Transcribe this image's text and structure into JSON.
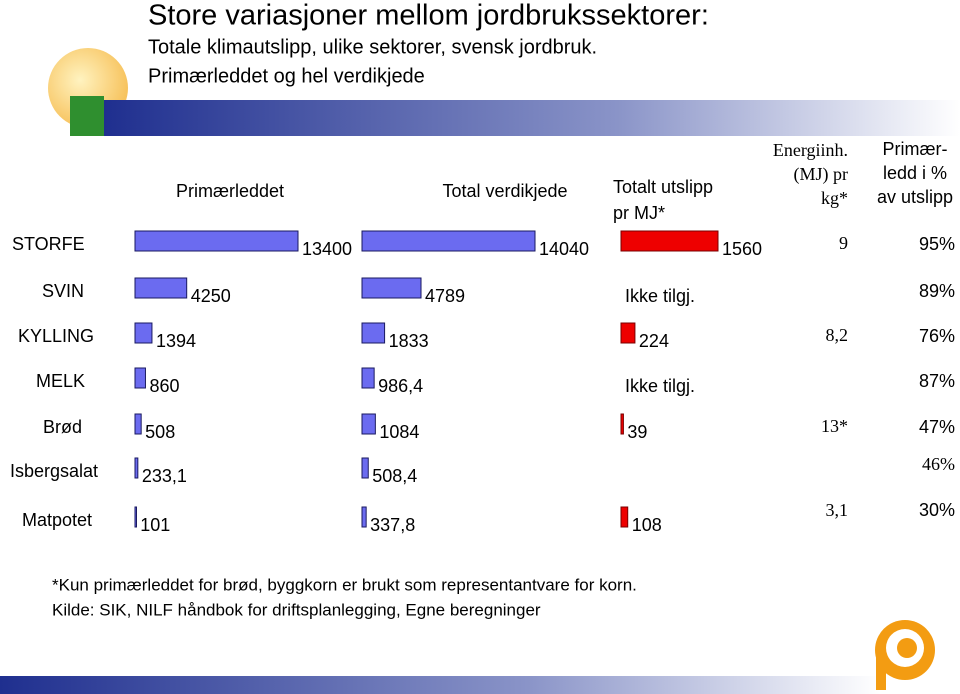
{
  "title": "Store variasjoner mellom jordbrukssektorer:",
  "subtitle": [
    "Totale klimautslipp, ulike sektorer, svensk jordbruk.",
    "Primærleddet og hel verdikjede"
  ],
  "categories": [
    "STORFE",
    "SVIN",
    "KYLLING",
    "MELK",
    "Brød",
    "Isbergsalat",
    "Matpotet"
  ],
  "chart_data": [
    {
      "type": "bar",
      "orientation": "horizontal",
      "title": [
        "Primærleddet"
      ],
      "color": "#6b6bf0",
      "values": [
        13400,
        4250,
        1394,
        860,
        508,
        233.1,
        101
      ],
      "value_labels": [
        "13400",
        "4250",
        "1394",
        "860",
        "508",
        "233,1",
        "101"
      ]
    },
    {
      "type": "bar",
      "orientation": "horizontal",
      "title": [
        "Total verdikjede"
      ],
      "color": "#6b6bf0",
      "values": [
        14040,
        4789,
        1833,
        986.4,
        1084,
        508.4,
        337.8
      ],
      "value_labels": [
        "14040",
        "4789",
        "1833",
        "986,4",
        "1084",
        "508,4",
        "337,8"
      ]
    },
    {
      "type": "bar",
      "orientation": "horizontal",
      "title": [
        "Totalt utslipp",
        "pr MJ*"
      ],
      "color": "#ee0000",
      "values": [
        1560,
        null,
        224,
        null,
        39,
        null,
        108
      ],
      "value_labels": [
        "1560",
        "Ikke tilgj.",
        "224",
        "Ikke tilgj.",
        "39",
        null,
        "108"
      ]
    }
  ],
  "table": {
    "headers": [
      [
        "Energiinh.",
        "(MJ) pr",
        "kg*"
      ],
      [
        "Primær-",
        "ledd i %",
        "av utslipp"
      ]
    ],
    "energy": [
      "9",
      null,
      "8,2",
      null,
      "13*",
      null,
      "3,1"
    ],
    "share": [
      "95%",
      "89%",
      "76%",
      "87%",
      "47%",
      "46%",
      "30%"
    ]
  },
  "footnotes": [
    "*Kun primærleddet for brød, byggkorn er brukt som representantvare for korn.",
    "Kilde: SIK, NILF håndbok for driftsplanlegging, Egne beregninger"
  ]
}
